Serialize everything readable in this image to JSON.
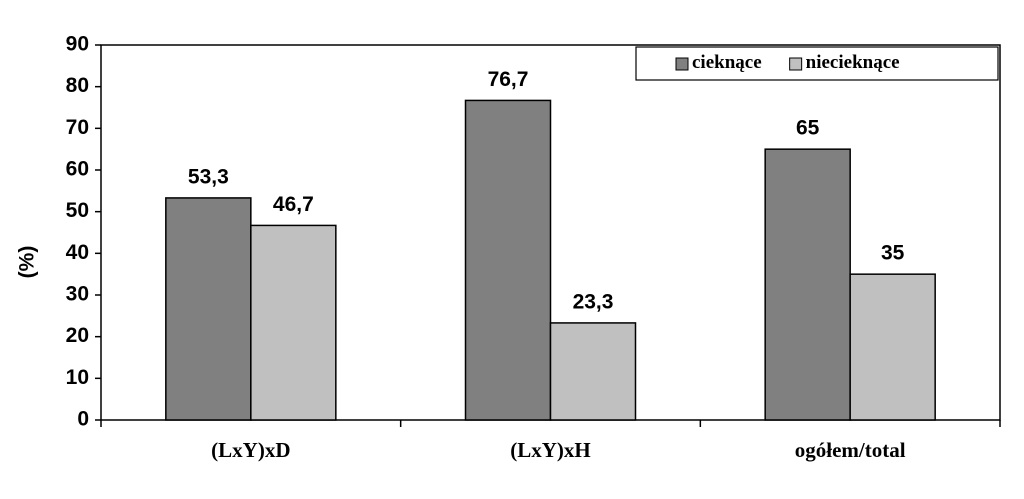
{
  "chart_data": {
    "type": "bar",
    "y_label": "(%)",
    "categories": [
      "(LxY)xD",
      "(LxY)xH",
      "ogółem/total"
    ],
    "series": [
      {
        "name": "cieknące",
        "color": "#808080",
        "values": [
          53.3,
          76.7,
          65
        ],
        "value_labels": [
          "53,3",
          "76,7",
          "65"
        ]
      },
      {
        "name": "niecieknące",
        "color": "#c0c0c0",
        "values": [
          46.7,
          23.3,
          35
        ],
        "value_labels": [
          "46,7",
          "23,3",
          "35"
        ]
      }
    ],
    "ylim": [
      0,
      90
    ],
    "yticks": [
      0,
      10,
      20,
      30,
      40,
      50,
      60,
      70,
      80,
      90
    ],
    "grid": false,
    "legend": "top-right"
  }
}
